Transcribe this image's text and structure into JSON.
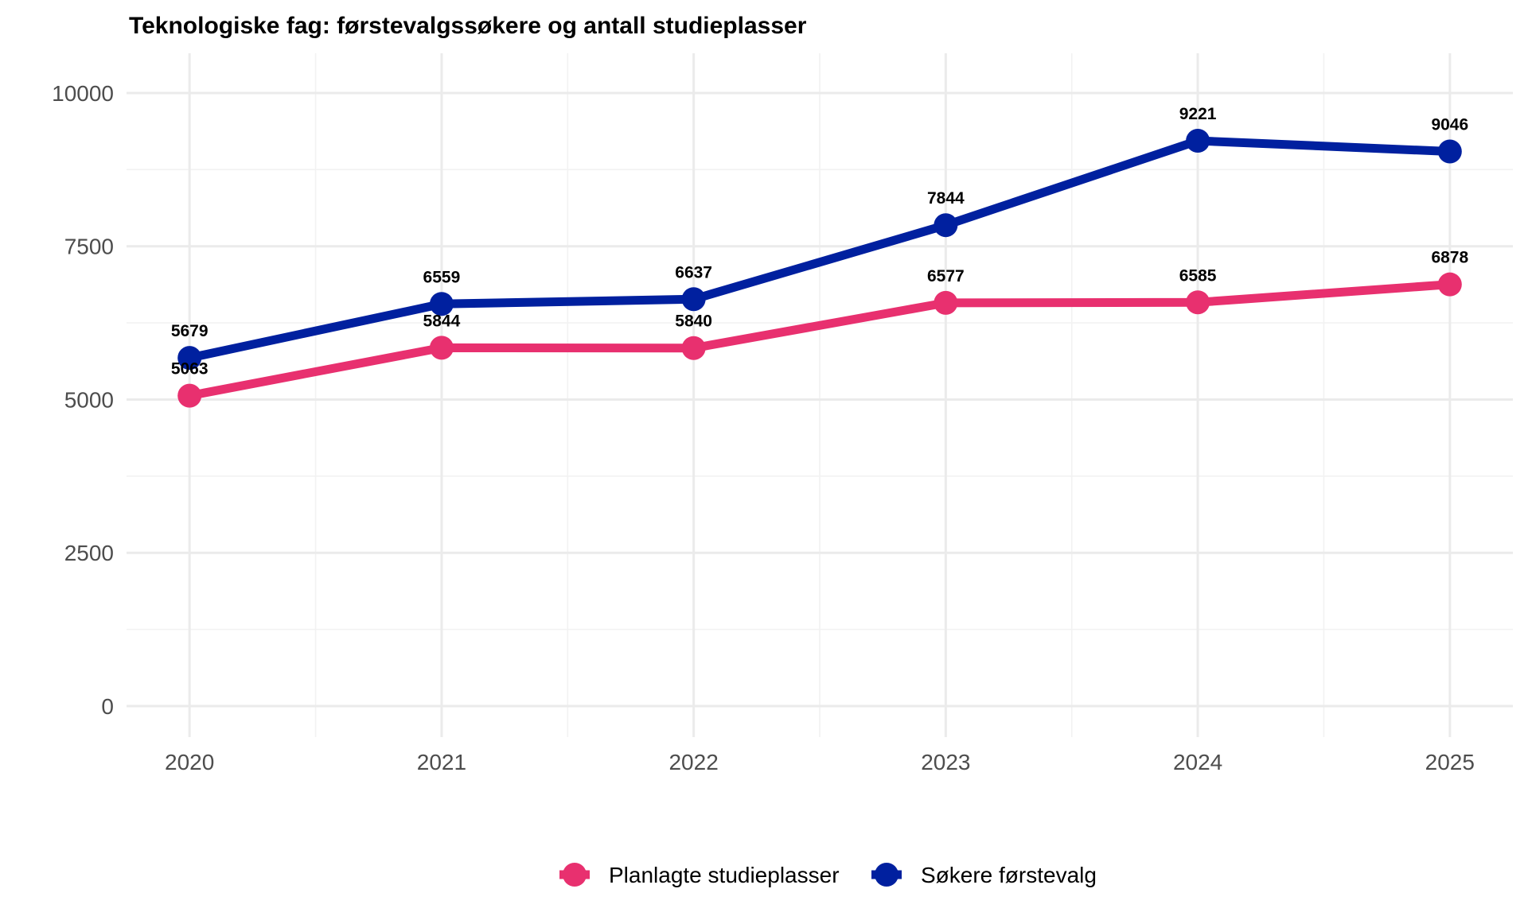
{
  "chart_data": {
    "type": "line",
    "title": "Teknologiske fag: førstevalgssøkere og antall studieplasser",
    "xlabel": "",
    "ylabel": "",
    "x": [
      2020,
      2021,
      2022,
      2023,
      2024,
      2025
    ],
    "x_tick_labels": [
      "2020",
      "2021",
      "2022",
      "2023",
      "2024",
      "2025"
    ],
    "xlim": [
      2019.75,
      2025.25
    ],
    "y_ticks": [
      0,
      2500,
      5000,
      7500,
      10000
    ],
    "y_tick_labels": [
      "0",
      "2500",
      "5000",
      "7500",
      "10000"
    ],
    "ylim": [
      -506,
      10648
    ],
    "grid": true,
    "legend_position": "bottom",
    "series": [
      {
        "name": "Planlagte studieplasser",
        "color": "#E8306F",
        "values": [
          5063,
          5844,
          5840,
          6577,
          6585,
          6878
        ],
        "labels": [
          "5063",
          "5844",
          "5840",
          "6577",
          "6585",
          "6878"
        ]
      },
      {
        "name": "Søkere førstevalg",
        "color": "#00209F",
        "values": [
          5679,
          6559,
          6637,
          7844,
          9221,
          9046
        ],
        "labels": [
          "5679",
          "6559",
          "6637",
          "7844",
          "9221",
          "9046"
        ]
      }
    ]
  }
}
